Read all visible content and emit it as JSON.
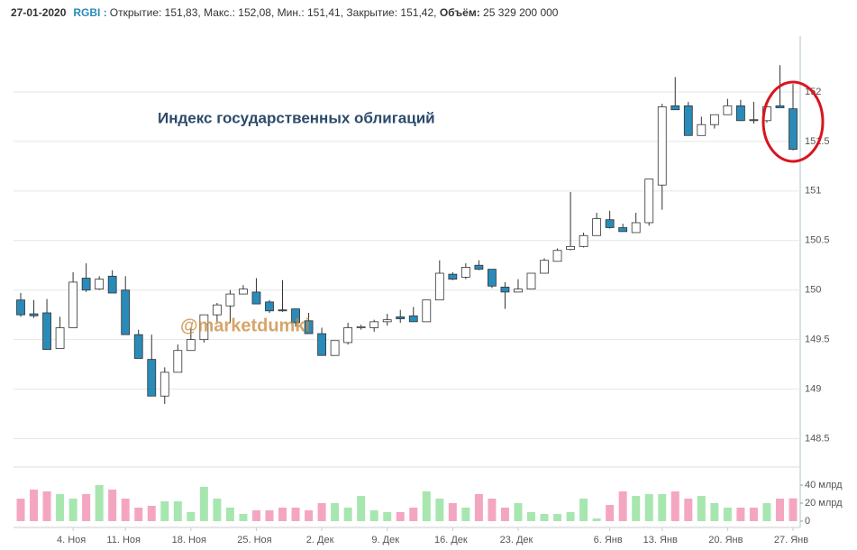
{
  "header": {
    "date": "27-01-2020",
    "ticker": "RGBI :",
    "fields": [
      {
        "label": "Открытие:",
        "value": "151,83,"
      },
      {
        "label": "Макс.:",
        "value": "152,08,"
      },
      {
        "label": "Мин.:",
        "value": "151,41,"
      },
      {
        "label": "Закрытие:",
        "value": "151,42,"
      }
    ],
    "volume_label": "Объём:",
    "volume_value": "25 329 200 000"
  },
  "chart_data": {
    "type": "candlestick",
    "title": "Индекс государственных облигаций",
    "annotation": "@marketdumki",
    "categories": [
      null,
      null,
      null,
      null,
      "4. Ноя",
      null,
      null,
      null,
      "11. Ноя",
      null,
      null,
      null,
      null,
      "18. Ноя",
      null,
      null,
      null,
      null,
      "25. Ноя",
      null,
      null,
      null,
      null,
      "2. Дек",
      null,
      null,
      null,
      null,
      "9. Дек",
      null,
      null,
      null,
      null,
      "16. Дек",
      null,
      null,
      null,
      null,
      "23. Дек",
      null,
      null,
      null,
      null,
      null,
      null,
      "6. Янв",
      null,
      null,
      null,
      "13. Янв",
      null,
      null,
      null,
      null,
      "20. Янв",
      null,
      null,
      null,
      null,
      "27. Янв"
    ],
    "open": [
      149.9,
      149.76,
      149.77,
      149.41,
      149.62,
      150.12,
      150.01,
      150.14,
      150.0,
      149.55,
      149.3,
      148.93,
      149.17,
      149.39,
      149.5,
      149.75,
      149.84,
      149.96,
      149.98,
      149.88,
      149.8,
      149.81,
      149.69,
      149.56,
      149.34,
      149.47,
      149.62,
      149.62,
      149.68,
      149.73,
      149.74,
      149.68,
      149.9,
      150.16,
      150.13,
      150.25,
      150.21,
      150.03,
      149.98,
      150.01,
      150.17,
      150.29,
      150.41,
      150.44,
      150.55,
      150.71,
      150.63,
      150.58,
      150.68,
      151.06,
      151.86,
      151.86,
      151.56,
      151.67,
      151.77,
      151.86,
      151.72,
      151.71,
      151.86,
      151.83
    ],
    "high": [
      149.97,
      149.9,
      149.91,
      149.73,
      150.18,
      150.27,
      150.14,
      150.2,
      150.14,
      149.6,
      149.55,
      149.22,
      149.45,
      149.61,
      149.75,
      149.87,
      150.0,
      150.05,
      150.12,
      149.9,
      150.1,
      149.81,
      149.77,
      149.62,
      149.49,
      149.67,
      149.65,
      149.7,
      149.76,
      149.8,
      149.83,
      149.9,
      150.3,
      150.18,
      150.27,
      150.3,
      150.21,
      150.08,
      150.11,
      150.17,
      150.32,
      150.42,
      150.99,
      150.58,
      150.78,
      150.8,
      150.67,
      150.78,
      151.12,
      151.88,
      152.15,
      151.9,
      151.75,
      151.77,
      151.93,
      151.92,
      151.9,
      151.88,
      152.27,
      152.08
    ],
    "low": [
      149.73,
      149.72,
      149.4,
      149.41,
      149.62,
      149.98,
      150.0,
      149.97,
      149.55,
      149.31,
      148.93,
      148.85,
      149.17,
      149.39,
      149.47,
      149.68,
      149.67,
      149.96,
      149.86,
      149.77,
      149.78,
      149.63,
      149.56,
      149.34,
      149.34,
      149.45,
      149.6,
      149.58,
      149.64,
      149.67,
      149.68,
      149.68,
      149.9,
      150.1,
      150.11,
      150.2,
      150.02,
      149.81,
      149.98,
      150.01,
      150.17,
      150.29,
      150.4,
      150.43,
      150.55,
      150.62,
      150.59,
      150.58,
      150.65,
      150.81,
      151.82,
      151.56,
      151.56,
      151.63,
      151.77,
      151.71,
      151.68,
      151.69,
      151.84,
      151.41
    ],
    "close": [
      149.75,
      149.74,
      149.4,
      149.62,
      150.08,
      150.0,
      150.11,
      149.97,
      149.55,
      149.31,
      148.93,
      149.17,
      149.39,
      149.5,
      149.75,
      149.85,
      149.96,
      150.01,
      149.86,
      149.79,
      149.79,
      149.67,
      149.56,
      149.34,
      149.49,
      149.62,
      149.63,
      149.68,
      149.7,
      149.71,
      149.68,
      149.9,
      150.17,
      150.11,
      150.23,
      150.21,
      150.04,
      149.98,
      150.01,
      150.17,
      150.3,
      150.4,
      150.44,
      150.55,
      150.72,
      150.63,
      150.59,
      150.68,
      151.12,
      151.85,
      151.82,
      151.56,
      151.67,
      151.77,
      151.86,
      151.71,
      151.71,
      151.85,
      151.84,
      151.42
    ],
    "up_color": "#ffffff",
    "down_color": "#2a8ab8",
    "ylim": [
      148.35,
      152.5
    ],
    "yticks": [
      148.5,
      149,
      149.5,
      150,
      150.5,
      151,
      151.5,
      152
    ],
    "grid": true,
    "volume": {
      "up_color": "#a8e6b0",
      "down_color": "#f4a6c0",
      "values": [
        25,
        35,
        33,
        30,
        25,
        30,
        40,
        35,
        25,
        15,
        17,
        22,
        22,
        10,
        38,
        25,
        15,
        8,
        12,
        12,
        15,
        15,
        12,
        20,
        20,
        15,
        28,
        12,
        10,
        10,
        15,
        33,
        25,
        20,
        15,
        30,
        25,
        15,
        20,
        10,
        8,
        8,
        10,
        25,
        3,
        18,
        33,
        28,
        30,
        30,
        33,
        25,
        28,
        20,
        15,
        15,
        15,
        20,
        25,
        25.3292
      ],
      "ylim": [
        0,
        60
      ],
      "yticks": [
        0,
        {
          "value": 20,
          "label": "20 млрд"
        },
        {
          "value": 40,
          "label": "40 млрд"
        }
      ]
    }
  }
}
